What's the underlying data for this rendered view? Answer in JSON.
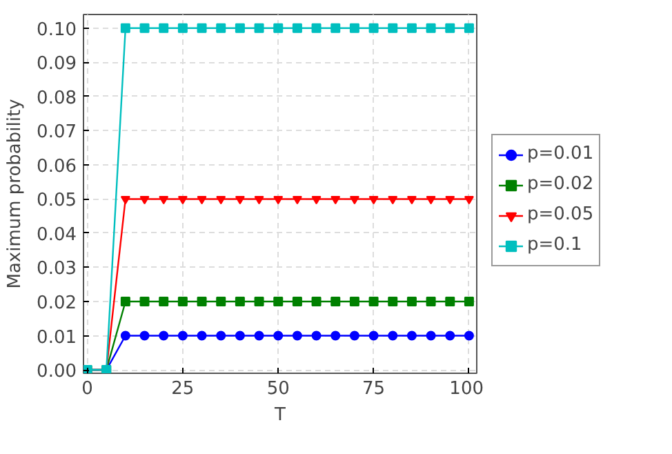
{
  "chart_data": {
    "type": "line",
    "xlabel": "T",
    "ylabel": "Maximum probability",
    "x": [
      0,
      5,
      10,
      15,
      20,
      25,
      30,
      35,
      40,
      45,
      50,
      55,
      60,
      65,
      70,
      75,
      80,
      85,
      90,
      95,
      100
    ],
    "series": [
      {
        "name": "p=0.01",
        "color": "#0000ff",
        "marker": "circle",
        "values": [
          0,
          0,
          0.01,
          0.01,
          0.01,
          0.01,
          0.01,
          0.01,
          0.01,
          0.01,
          0.01,
          0.01,
          0.01,
          0.01,
          0.01,
          0.01,
          0.01,
          0.01,
          0.01,
          0.01,
          0.01
        ]
      },
      {
        "name": "p=0.02",
        "color": "#008000",
        "marker": "square",
        "values": [
          0,
          0,
          0.02,
          0.02,
          0.02,
          0.02,
          0.02,
          0.02,
          0.02,
          0.02,
          0.02,
          0.02,
          0.02,
          0.02,
          0.02,
          0.02,
          0.02,
          0.02,
          0.02,
          0.02,
          0.02
        ]
      },
      {
        "name": "p=0.05",
        "color": "#ff0000",
        "marker": "triangle",
        "values": [
          0,
          0,
          0.05,
          0.05,
          0.05,
          0.05,
          0.05,
          0.05,
          0.05,
          0.05,
          0.05,
          0.05,
          0.05,
          0.05,
          0.05,
          0.05,
          0.05,
          0.05,
          0.05,
          0.05,
          0.05
        ]
      },
      {
        "name": "p=0.1",
        "color": "#00bfbf",
        "marker": "square",
        "values": [
          0,
          0,
          0.1,
          0.1,
          0.1,
          0.1,
          0.1,
          0.1,
          0.1,
          0.1,
          0.1,
          0.1,
          0.1,
          0.1,
          0.1,
          0.1,
          0.1,
          0.1,
          0.1,
          0.1,
          0.1
        ]
      }
    ],
    "xlim": [
      -1,
      102
    ],
    "xticks": [
      0,
      25,
      50,
      75,
      100
    ],
    "ylim": [
      -0.001,
      0.104
    ],
    "yticks": [
      {
        "value": 0,
        "label": "0.00"
      },
      {
        "value": 0.01,
        "label": "0.01"
      },
      {
        "value": 0.02,
        "label": "0.02"
      },
      {
        "value": 0.03,
        "label": "0.03"
      },
      {
        "value": 0.04,
        "label": "0.04"
      },
      {
        "value": 0.05,
        "label": "0.05"
      },
      {
        "value": 0.06,
        "label": "0.06"
      },
      {
        "value": 0.07,
        "label": "0.07"
      },
      {
        "value": 0.08,
        "label": "0.08"
      },
      {
        "value": 0.09,
        "label": "0.09"
      },
      {
        "value": 0.1,
        "label": "0.10"
      }
    ],
    "grid": true,
    "legend": "right",
    "line_style": "solid"
  }
}
